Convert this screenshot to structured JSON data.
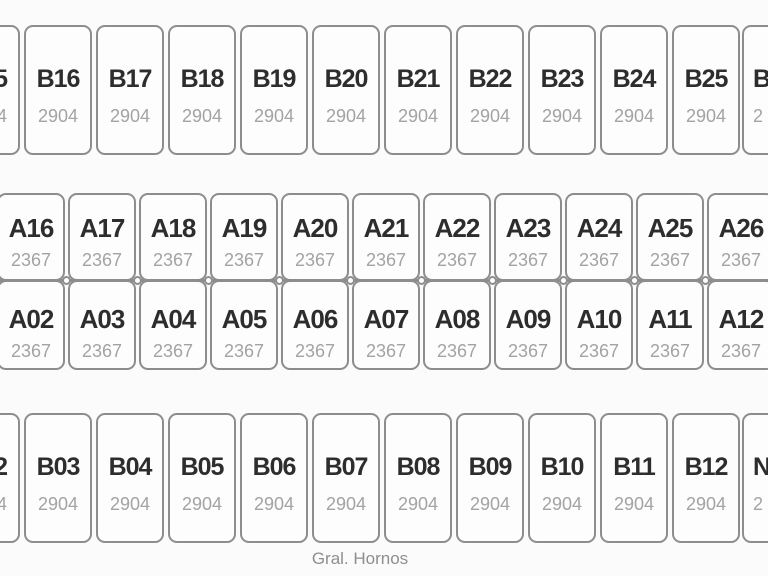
{
  "colors": {
    "cell_border": "#8d8d8d",
    "cell_fill": "#fdfdfd",
    "label_text": "#2d2d2d",
    "value_text": "#a3a3a3",
    "street_text": "#8e8e8e",
    "background": "#fbfbfb"
  },
  "map": {
    "street": "Gral. Hornos",
    "row_b_top": {
      "partial_left": {
        "label": "5",
        "value": "4"
      },
      "cells": [
        {
          "label": "B16",
          "value": "2904"
        },
        {
          "label": "B17",
          "value": "2904"
        },
        {
          "label": "B18",
          "value": "2904"
        },
        {
          "label": "B19",
          "value": "2904"
        },
        {
          "label": "B20",
          "value": "2904"
        },
        {
          "label": "B21",
          "value": "2904"
        },
        {
          "label": "B22",
          "value": "2904"
        },
        {
          "label": "B23",
          "value": "2904"
        },
        {
          "label": "B24",
          "value": "2904"
        },
        {
          "label": "B25",
          "value": "2904"
        }
      ],
      "partial_right": {
        "label": "B",
        "value": "2"
      }
    },
    "block_a": {
      "row1": [
        {
          "label": "A16",
          "value": "2367"
        },
        {
          "label": "A17",
          "value": "2367"
        },
        {
          "label": "A18",
          "value": "2367"
        },
        {
          "label": "A19",
          "value": "2367"
        },
        {
          "label": "A20",
          "value": "2367"
        },
        {
          "label": "A21",
          "value": "2367"
        },
        {
          "label": "A22",
          "value": "2367"
        },
        {
          "label": "A23",
          "value": "2367"
        },
        {
          "label": "A24",
          "value": "2367"
        },
        {
          "label": "A25",
          "value": "2367"
        },
        {
          "label": "A26",
          "value": "2367"
        }
      ],
      "row2": [
        {
          "label": "A02",
          "value": "2367"
        },
        {
          "label": "A03",
          "value": "2367"
        },
        {
          "label": "A04",
          "value": "2367"
        },
        {
          "label": "A05",
          "value": "2367"
        },
        {
          "label": "A06",
          "value": "2367"
        },
        {
          "label": "A07",
          "value": "2367"
        },
        {
          "label": "A08",
          "value": "2367"
        },
        {
          "label": "A09",
          "value": "2367"
        },
        {
          "label": "A10",
          "value": "2367"
        },
        {
          "label": "A11",
          "value": "2367"
        },
        {
          "label": "A12",
          "value": "2367"
        }
      ]
    },
    "row_b_bottom": {
      "partial_left": {
        "label": "2",
        "value": "4"
      },
      "cells": [
        {
          "label": "B03",
          "value": "2904"
        },
        {
          "label": "B04",
          "value": "2904"
        },
        {
          "label": "B05",
          "value": "2904"
        },
        {
          "label": "B06",
          "value": "2904"
        },
        {
          "label": "B07",
          "value": "2904"
        },
        {
          "label": "B08",
          "value": "2904"
        },
        {
          "label": "B09",
          "value": "2904"
        },
        {
          "label": "B10",
          "value": "2904"
        },
        {
          "label": "B11",
          "value": "2904"
        },
        {
          "label": "B12",
          "value": "2904"
        }
      ],
      "partial_right": {
        "label": "N",
        "value": "2"
      }
    }
  }
}
